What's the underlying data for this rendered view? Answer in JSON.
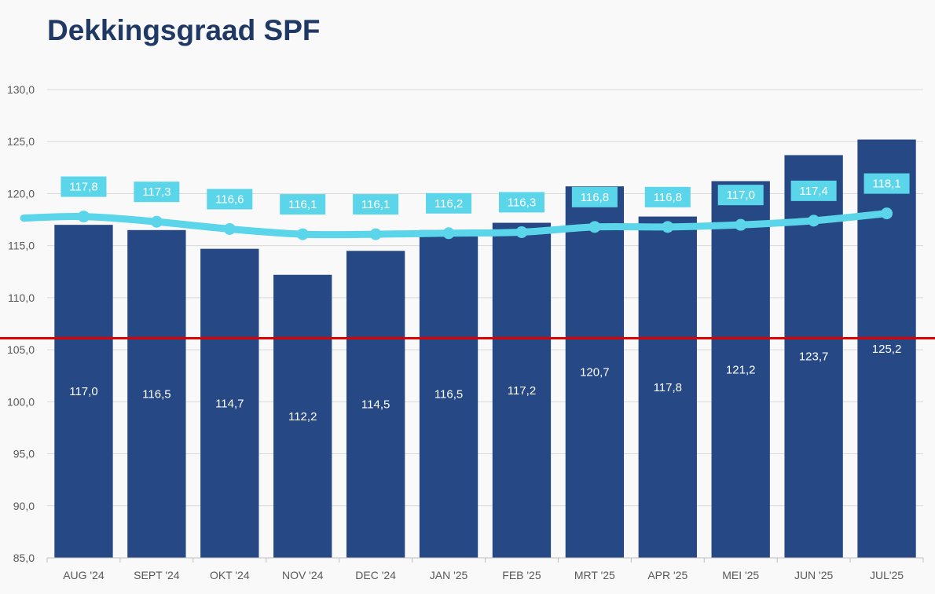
{
  "chart_data": {
    "type": "bar",
    "title": "Dekkingsgraad SPF",
    "categories": [
      "AUG '24",
      "SEPT '24",
      "OKT '24",
      "NOV '24",
      "DEC '24",
      "JAN '25",
      "FEB '25",
      "MRT '25",
      "APR '25",
      "MEI '25",
      "JUN '25",
      "JUL'25"
    ],
    "series": [
      {
        "type": "bar",
        "values": [
          117.0,
          116.5,
          114.7,
          112.2,
          114.5,
          116.5,
          117.2,
          120.7,
          117.8,
          121.2,
          123.7,
          125.2
        ],
        "labels": [
          "117,0",
          "116,5",
          "114,7",
          "112,2",
          "114,5",
          "116,5",
          "117,2",
          "120,7",
          "117,8",
          "121,2",
          "123,7",
          "125,2"
        ],
        "color": "#264884"
      },
      {
        "type": "line",
        "values": [
          117.8,
          117.3,
          116.6,
          116.1,
          116.1,
          116.2,
          116.3,
          116.8,
          116.8,
          117.0,
          117.4,
          118.1
        ],
        "labels": [
          "117,8",
          "117,3",
          "116,6",
          "116,1",
          "116,1",
          "116,2",
          "116,3",
          "116,8",
          "116,8",
          "117,0",
          "117,4",
          "118,1"
        ],
        "color": "#5bd5ea"
      }
    ],
    "reference_line": {
      "value": 106.1,
      "color": "#e00000"
    },
    "ylim": [
      85,
      130
    ],
    "yticks": [
      85,
      90,
      95,
      100,
      105,
      110,
      115,
      120,
      125,
      130
    ],
    "ytick_labels": [
      "85,0",
      "90,0",
      "95,0",
      "100,0",
      "105,0",
      "110,0",
      "115,0",
      "120,0",
      "125,0",
      "130,0"
    ],
    "grid": true,
    "legend": "none"
  }
}
